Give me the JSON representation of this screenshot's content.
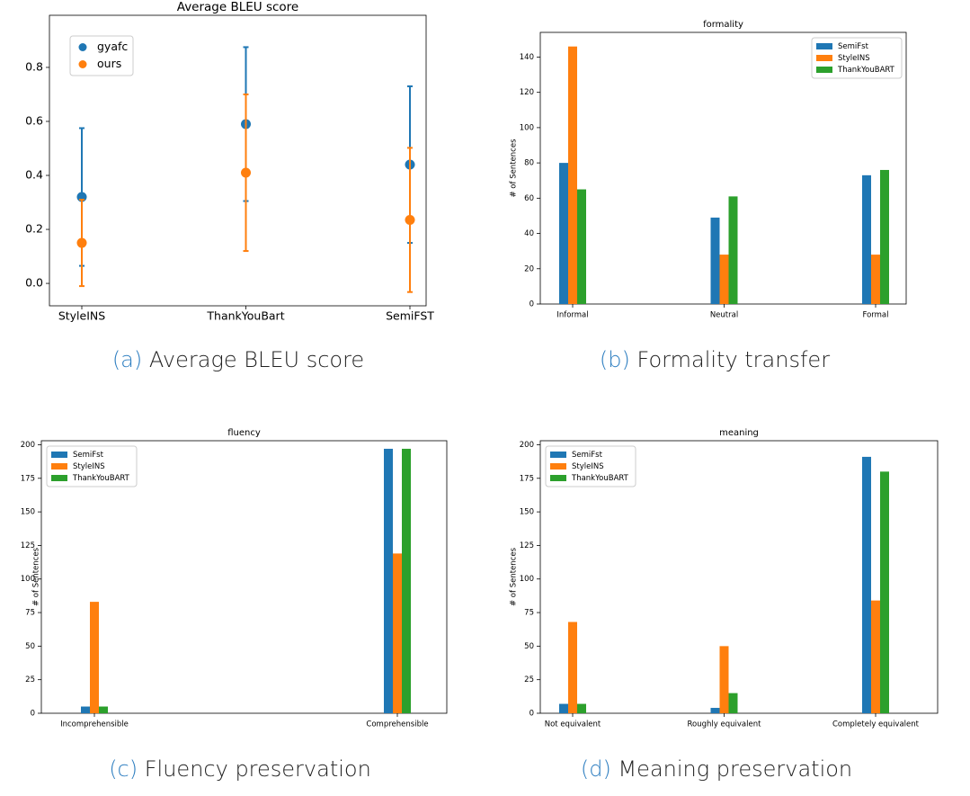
{
  "chart_data": [
    {
      "type": "errorbar",
      "title": "Average BLEU score",
      "caption_label": "(a)",
      "caption": "Average BLEU score",
      "categories": [
        "StyleINS",
        "ThankYouBart",
        "SemiFST"
      ],
      "series": [
        {
          "name": "gyafc",
          "color": "#1f77b4",
          "values": [
            0.32,
            0.59,
            0.44
          ],
          "errors": [
            0.255,
            0.285,
            0.29
          ]
        },
        {
          "name": "ours",
          "color": "#ff7f0e",
          "values": [
            0.15,
            0.41,
            0.235
          ],
          "errors": [
            0.16,
            0.29,
            0.267
          ]
        }
      ],
      "ylim": [
        -0.083,
        0.993
      ],
      "yticks": [
        {
          "value": 0,
          "label": "0.0"
        },
        0.2,
        0.4,
        0.6,
        0.8
      ],
      "legend": "upper left",
      "grid": false
    },
    {
      "type": "bar",
      "title": "formality",
      "caption_label": "(b)",
      "caption": "Formality transfer",
      "y_label": "# of Sentences",
      "categories": [
        "Informal",
        "Neutral",
        "Formal"
      ],
      "series": [
        {
          "name": "SemiFst",
          "color": "#1f77b4",
          "values": [
            80,
            49,
            73
          ]
        },
        {
          "name": "StyleINS",
          "color": "#ff7f0e",
          "values": [
            146,
            28,
            28
          ]
        },
        {
          "name": "ThankYouBART",
          "color": "#2ca02c",
          "values": [
            65,
            61,
            76
          ]
        }
      ],
      "ylim": [
        0,
        154
      ],
      "yticks": [
        0,
        20,
        40,
        60,
        80,
        100,
        120,
        140
      ],
      "legend": "upper right",
      "grid": false
    },
    {
      "type": "bar",
      "title": "fluency",
      "caption_label": "(c)",
      "caption": "Fluency preservation",
      "y_label": "# of Sentences",
      "categories": [
        "Incomprehensible",
        "Comprehensible"
      ],
      "series": [
        {
          "name": "SemiFst",
          "color": "#1f77b4",
          "values": [
            5,
            197
          ]
        },
        {
          "name": "StyleINS",
          "color": "#ff7f0e",
          "values": [
            83,
            119
          ]
        },
        {
          "name": "ThankYouBART",
          "color": "#2ca02c",
          "values": [
            5,
            197
          ]
        }
      ],
      "ylim": [
        0,
        203
      ],
      "yticks": [
        0,
        25,
        50,
        75,
        100,
        125,
        150,
        175,
        200
      ],
      "legend": "upper left",
      "grid": false
    },
    {
      "type": "bar",
      "title": "meaning",
      "caption_label": "(d)",
      "caption": "Meaning preservation",
      "y_label": "# of Sentences",
      "categories": [
        "Not equivalent",
        "Roughly equivalent",
        "Completely equivalent"
      ],
      "series": [
        {
          "name": "SemiFst",
          "color": "#1f77b4",
          "values": [
            7,
            4,
            191
          ]
        },
        {
          "name": "StyleINS",
          "color": "#ff7f0e",
          "values": [
            68,
            50,
            84
          ]
        },
        {
          "name": "ThankYouBART",
          "color": "#2ca02c",
          "values": [
            7,
            15,
            180
          ]
        }
      ],
      "ylim": [
        0,
        203
      ],
      "yticks": [
        0,
        25,
        50,
        75,
        100,
        125,
        150,
        175,
        200
      ],
      "legend": "upper left",
      "grid": false
    }
  ]
}
